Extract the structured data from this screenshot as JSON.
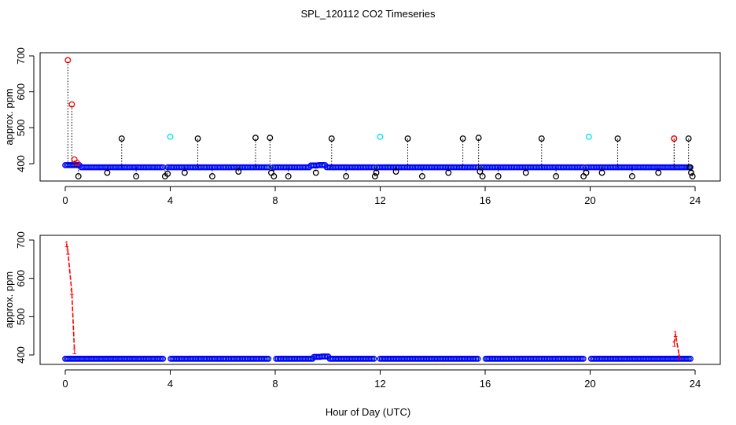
{
  "title": "SPL_120112  CO2 Timeseries",
  "xlabel": "Hour of Day (UTC)",
  "colors": {
    "frame": "#000000",
    "raw_points": "#000000",
    "spike_points": "#ff0000",
    "cyan_points": "#00e5e5",
    "filtered_points": "#0000ff",
    "good_points": "#00c800",
    "red_line": "#ff0000"
  },
  "chart_data": [
    {
      "id": "top",
      "type": "scatter",
      "ylabel": "approx. ppm",
      "xlim": [
        0,
        24
      ],
      "ylim": [
        350,
        700
      ],
      "x_ticks": [
        "0",
        "4",
        "8",
        "12",
        "16",
        "20",
        "24"
      ],
      "y_ticks": [
        "400",
        "500",
        "600",
        "700"
      ],
      "baseline": 390,
      "series": [
        {
          "name": "filtered",
          "marker": "circle",
          "color": "#0000ff",
          "x_start": 0.0,
          "x_end": 23.85,
          "step": 0.06,
          "y": 390,
          "gaps": [
            [
              3.78,
              3.9
            ],
            [
              7.78,
              7.86
            ],
            [
              11.78,
              11.84
            ],
            [
              15.78,
              15.84
            ],
            [
              19.78,
              19.84
            ]
          ],
          "bumps": [
            {
              "x": 0.0,
              "y": 700
            },
            {
              "x": 0.25,
              "y": 565
            },
            {
              "x": 0.4,
              "y": 410
            },
            {
              "x": 9.5,
              "y": 395
            },
            {
              "x": 9.8,
              "y": 396
            }
          ]
        },
        {
          "name": "spikes_black",
          "marker": "circle",
          "color": "#000000",
          "stems": true,
          "points": [
            [
              0.5,
              365
            ],
            [
              1.6,
              375
            ],
            [
              2.15,
              470
            ],
            [
              2.7,
              365
            ],
            [
              3.8,
              365
            ],
            [
              3.9,
              372
            ],
            [
              4.55,
              375
            ],
            [
              5.05,
              470
            ],
            [
              5.6,
              365
            ],
            [
              6.6,
              378
            ],
            [
              7.25,
              472
            ],
            [
              7.8,
              472
            ],
            [
              7.85,
              375
            ],
            [
              7.95,
              365
            ],
            [
              8.5,
              365
            ],
            [
              9.55,
              375
            ],
            [
              10.15,
              470
            ],
            [
              10.7,
              365
            ],
            [
              11.8,
              365
            ],
            [
              11.85,
              375
            ],
            [
              12.6,
              378
            ],
            [
              13.05,
              470
            ],
            [
              13.6,
              365
            ],
            [
              14.6,
              375
            ],
            [
              15.15,
              470
            ],
            [
              15.75,
              472
            ],
            [
              15.8,
              378
            ],
            [
              15.9,
              365
            ],
            [
              16.5,
              365
            ],
            [
              17.55,
              375
            ],
            [
              18.15,
              470
            ],
            [
              18.7,
              365
            ],
            [
              19.75,
              365
            ],
            [
              19.85,
              375
            ],
            [
              20.45,
              375
            ],
            [
              21.05,
              470
            ],
            [
              21.6,
              365
            ],
            [
              22.6,
              375
            ],
            [
              23.2,
              470
            ],
            [
              23.75,
              470
            ],
            [
              23.8,
              390
            ],
            [
              23.85,
              375
            ],
            [
              23.9,
              365
            ]
          ]
        },
        {
          "name": "spikes_cyan",
          "marker": "circle",
          "color": "#00e5e5",
          "points": [
            [
              4.0,
              475
            ],
            [
              12.0,
              475
            ],
            [
              19.95,
              475
            ]
          ]
        },
        {
          "name": "spikes_red",
          "marker": "circle",
          "color": "#ff0000",
          "points": [
            [
              0.1,
              688
            ],
            [
              0.25,
              565
            ],
            [
              0.35,
              412
            ],
            [
              0.45,
              402
            ],
            [
              23.2,
              470
            ]
          ]
        }
      ]
    },
    {
      "id": "bottom",
      "type": "scatter",
      "ylabel": "approx. ppm",
      "xlim": [
        0,
        24
      ],
      "ylim": [
        375,
        700
      ],
      "x_ticks": [
        "0",
        "4",
        "8",
        "12",
        "16",
        "20",
        "24"
      ],
      "y_ticks": [
        "400",
        "500",
        "600",
        "700"
      ],
      "baseline": 390,
      "series": [
        {
          "name": "filtered",
          "marker": "circle",
          "color": "#0000ff",
          "x_start": 0.0,
          "x_end": 23.85,
          "step": 0.06,
          "y": 390,
          "gaps": [
            [
              3.78,
              3.98
            ],
            [
              7.78,
              7.98
            ],
            [
              11.78,
              11.98
            ],
            [
              15.78,
              15.98
            ],
            [
              19.78,
              19.98
            ]
          ],
          "bumps": [
            {
              "x": 9.6,
              "y": 395
            },
            {
              "x": 9.9,
              "y": 396
            }
          ]
        },
        {
          "name": "removed_segments",
          "marker": "1",
          "color": "#ff0000",
          "segments": [
            [
              [
                0.05,
                690
              ],
              [
                0.1,
                670
              ],
              [
                0.25,
                565
              ],
              [
                0.35,
                410
              ]
            ],
            [
              [
                23.2,
                430
              ],
              [
                23.25,
                455
              ],
              [
                23.4,
                395
              ]
            ]
          ]
        }
      ]
    }
  ]
}
